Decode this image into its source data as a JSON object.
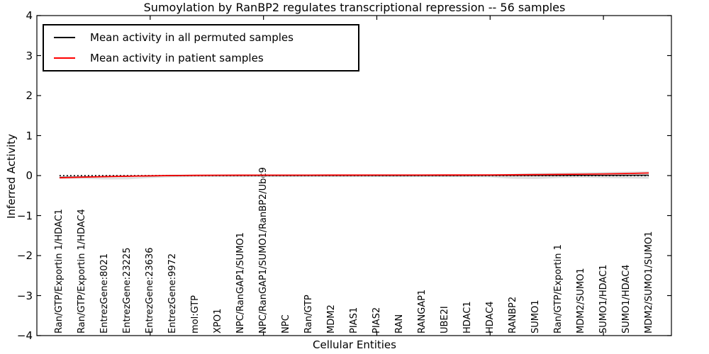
{
  "chart_data": {
    "type": "line",
    "title": "Sumoylation by RanBP2 regulates transcriptional repression -- 56 samples",
    "xlabel": "Cellular Entities",
    "ylabel": "Inferred Activity",
    "xlim": [
      0,
      28
    ],
    "ylim": [
      -4,
      4
    ],
    "grid": false,
    "legend_position": "upper left",
    "categories": [
      "Ran/GTP/Exportin 1/HDAC1",
      "Ran/GTP/Exportin 1/HDAC4",
      "EntrezGene:8021",
      "EntrezGene:23225",
      "EntrezGene:23636",
      "EntrezGene:9972",
      "mol:GTP",
      "XPO1",
      "NPC/RanGAP1/SUMO1",
      "NPC/RanGAP1/SUMO1/RanBP2/Ubc9",
      "NPC",
      "Ran/GTP",
      "MDM2",
      "PIAS1",
      "PIAS2",
      "RAN",
      "RANGAP1",
      "UBE2I",
      "HDAC1",
      "HDAC4",
      "RANBP2",
      "SUMO1",
      "Ran/GTP/Exportin 1",
      "MDM2/SUMO1",
      "SUMO1/HDAC1",
      "SUMO1/HDAC4",
      "MDM2/SUMO1/SUMO1"
    ],
    "x_positions": [
      1,
      2,
      3,
      4,
      5,
      6,
      7,
      8,
      9,
      10,
      11,
      12,
      13,
      14,
      15,
      16,
      17,
      18,
      19,
      20,
      21,
      22,
      23,
      24,
      25,
      26,
      27
    ],
    "series": [
      {
        "id": "permuted",
        "name": "Mean activity in all permuted samples",
        "color": "#000000",
        "values": [
          -0.045,
          -0.034,
          -0.026,
          -0.018,
          -0.01,
          -0.004,
          0.0,
          0.002,
          0.003,
          0.003,
          0.003,
          0.003,
          0.003,
          0.003,
          0.003,
          0.003,
          0.003,
          0.003,
          0.003,
          0.004,
          0.004,
          0.005,
          0.005,
          0.006,
          0.007,
          0.008,
          0.01
        ]
      },
      {
        "id": "patient",
        "name": "Mean activity in patient samples",
        "color": "#ff0000",
        "values": [
          -0.055,
          -0.04,
          -0.027,
          -0.016,
          -0.007,
          0.002,
          0.007,
          0.01,
          0.011,
          0.012,
          0.012,
          0.012,
          0.013,
          0.013,
          0.014,
          0.014,
          0.014,
          0.015,
          0.015,
          0.017,
          0.02,
          0.024,
          0.029,
          0.034,
          0.041,
          0.051,
          0.065
        ]
      }
    ],
    "band": {
      "name": "permuted-std-band",
      "color": "#d9d9d9",
      "upper": [
        -0.009,
        0.0,
        0.008,
        0.009,
        0.018,
        0.027,
        0.027,
        0.027,
        0.027,
        0.027,
        0.027,
        0.027,
        0.027,
        0.027,
        0.027,
        0.027,
        0.027,
        0.027,
        0.027,
        0.03,
        0.044,
        0.062,
        0.071,
        0.08,
        0.088,
        0.097,
        0.106
      ],
      "lower": [
        -0.08,
        -0.082,
        -0.097,
        -0.095,
        -0.062,
        -0.045,
        -0.04,
        -0.039,
        -0.039,
        -0.039,
        -0.039,
        -0.039,
        -0.039,
        -0.039,
        -0.039,
        -0.039,
        -0.039,
        -0.039,
        -0.04,
        -0.045,
        -0.08,
        -0.086,
        -0.062,
        -0.053,
        -0.062,
        -0.071,
        -0.08
      ]
    },
    "zero_line": {
      "value": 0,
      "style": "dotted",
      "color": "#000000"
    }
  },
  "axes": {
    "yticks": [
      4,
      3,
      2,
      1,
      0,
      -1,
      -2,
      -3,
      -4
    ],
    "xtick_positions": [
      5,
      10,
      15,
      20,
      25
    ]
  }
}
